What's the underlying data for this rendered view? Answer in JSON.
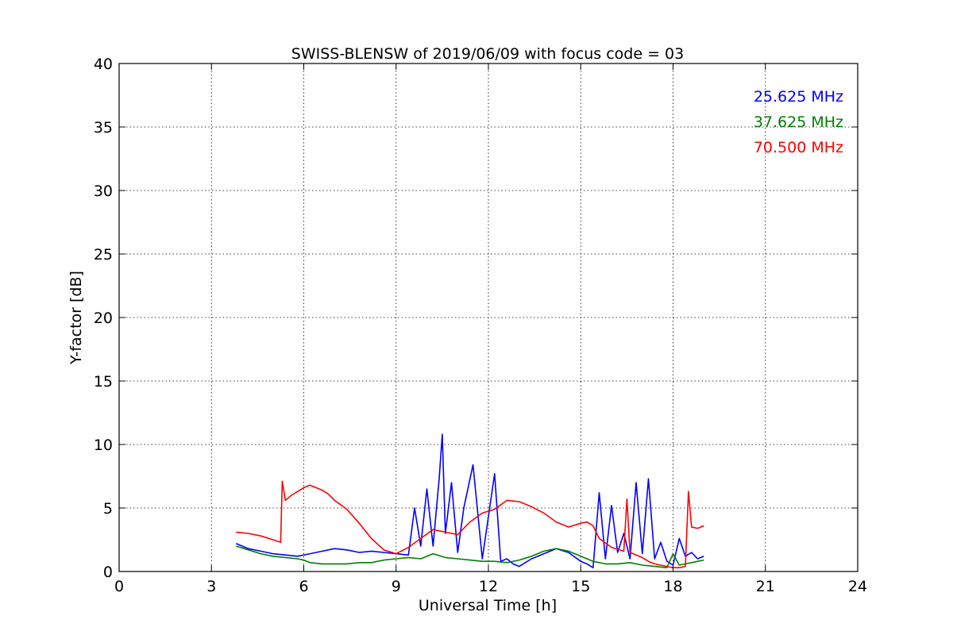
{
  "chart_data": {
    "type": "line",
    "title": "SWISS-BLENSW of 2019/06/09 with focus code = 03",
    "xlabel": "Universal Time [h]",
    "ylabel": "Y-factor [dB]",
    "xlim": [
      0,
      24
    ],
    "ylim": [
      0,
      40
    ],
    "xticks": [
      0,
      3,
      6,
      9,
      12,
      15,
      18,
      21,
      24
    ],
    "yticks": [
      0,
      5,
      10,
      15,
      20,
      25,
      30,
      35,
      40
    ],
    "xtick_labels": [
      "0",
      "3",
      "6",
      "9",
      "12",
      "15",
      "18",
      "21",
      "24"
    ],
    "ytick_labels": [
      "0",
      "5",
      "10",
      "15",
      "20",
      "25",
      "30",
      "35",
      "40"
    ],
    "grid": true,
    "legend_position": "top-right",
    "series": [
      {
        "name": "25.625 MHz",
        "color": "#0000ff",
        "x": [
          3.8,
          4.2,
          4.6,
          5.0,
          5.4,
          5.8,
          6.2,
          6.6,
          7.0,
          7.4,
          7.8,
          8.2,
          8.6,
          9.0,
          9.4,
          9.6,
          9.8,
          10.0,
          10.2,
          10.4,
          10.5,
          10.6,
          10.8,
          11.0,
          11.2,
          11.5,
          11.8,
          12.2,
          12.4,
          12.6,
          12.8,
          13.0,
          13.4,
          13.8,
          14.2,
          14.6,
          15.0,
          15.2,
          15.4,
          15.6,
          15.8,
          16.0,
          16.2,
          16.4,
          16.6,
          16.8,
          17.0,
          17.2,
          17.4,
          17.6,
          17.8,
          18.0,
          18.2,
          18.4,
          18.6,
          18.8,
          19.0
        ],
        "y": [
          2.2,
          1.8,
          1.6,
          1.4,
          1.3,
          1.2,
          1.4,
          1.6,
          1.8,
          1.7,
          1.5,
          1.6,
          1.5,
          1.4,
          1.3,
          5.0,
          2.0,
          6.5,
          2.0,
          7.3,
          10.8,
          3.0,
          7.0,
          1.5,
          5.0,
          8.4,
          1.0,
          7.7,
          0.8,
          1.0,
          0.6,
          0.4,
          1.0,
          1.4,
          1.8,
          1.5,
          0.8,
          0.6,
          0.3,
          6.2,
          1.0,
          5.2,
          1.5,
          3.0,
          1.0,
          7.0,
          1.4,
          7.3,
          1.0,
          2.3,
          0.8,
          0.5,
          2.6,
          1.2,
          1.5,
          1.0,
          1.2
        ]
      },
      {
        "name": "37.625 MHz",
        "color": "#008000",
        "x": [
          3.8,
          4.2,
          4.6,
          5.0,
          5.4,
          5.8,
          6.0,
          6.2,
          6.6,
          7.0,
          7.4,
          7.8,
          8.2,
          8.6,
          9.0,
          9.4,
          9.8,
          10.2,
          10.6,
          11.0,
          11.4,
          11.8,
          12.2,
          12.6,
          13.0,
          13.4,
          13.8,
          14.2,
          14.6,
          15.0,
          15.4,
          15.8,
          16.2,
          16.6,
          17.0,
          17.4,
          17.8,
          18.0,
          18.2,
          18.4,
          18.6,
          18.8,
          19.0
        ],
        "y": [
          2.0,
          1.7,
          1.4,
          1.2,
          1.1,
          1.0,
          0.9,
          0.7,
          0.6,
          0.6,
          0.6,
          0.7,
          0.7,
          0.9,
          1.0,
          1.1,
          1.0,
          1.4,
          1.1,
          1.0,
          0.9,
          0.8,
          0.8,
          0.7,
          0.9,
          1.2,
          1.6,
          1.8,
          1.6,
          1.2,
          0.8,
          0.6,
          0.6,
          0.7,
          0.5,
          0.4,
          0.3,
          1.4,
          0.5,
          0.6,
          0.7,
          0.8,
          0.9
        ]
      },
      {
        "name": "70.500 MHz",
        "color": "#ff0000",
        "x": [
          3.8,
          4.2,
          4.6,
          5.0,
          5.25,
          5.3,
          5.4,
          5.6,
          5.8,
          6.0,
          6.2,
          6.4,
          6.6,
          6.8,
          7.0,
          7.4,
          7.8,
          8.2,
          8.6,
          9.0,
          9.4,
          9.8,
          10.2,
          10.6,
          11.0,
          11.4,
          11.8,
          12.2,
          12.6,
          13.0,
          13.4,
          13.8,
          14.2,
          14.6,
          15.0,
          15.2,
          15.4,
          15.6,
          16.0,
          16.4,
          16.5,
          16.6,
          16.8,
          17.0,
          17.2,
          17.4,
          17.6,
          17.8,
          18.0,
          18.2,
          18.4,
          18.5,
          18.6,
          18.8,
          19.0
        ],
        "y": [
          3.1,
          3.0,
          2.8,
          2.5,
          2.3,
          7.1,
          5.6,
          6.0,
          6.3,
          6.6,
          6.8,
          6.6,
          6.4,
          6.1,
          5.6,
          4.9,
          3.8,
          2.6,
          1.7,
          1.4,
          1.9,
          2.6,
          3.3,
          3.1,
          2.9,
          3.9,
          4.6,
          4.9,
          5.6,
          5.5,
          5.1,
          4.6,
          3.9,
          3.5,
          3.8,
          3.9,
          3.6,
          2.6,
          1.9,
          1.6,
          5.7,
          1.5,
          1.3,
          1.1,
          0.8,
          0.6,
          0.5,
          0.4,
          0.3,
          0.3,
          0.4,
          6.3,
          3.5,
          3.4,
          3.6
        ]
      }
    ]
  }
}
